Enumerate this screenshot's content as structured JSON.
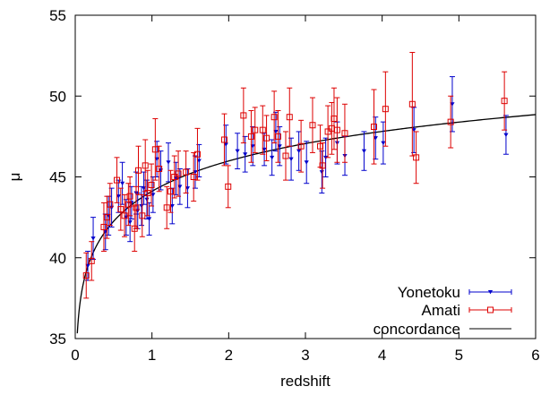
{
  "chart_data": {
    "type": "scatter",
    "xlabel": "redshift",
    "ylabel": "μ",
    "xlim": [
      0,
      6
    ],
    "ylim": [
      35,
      55
    ],
    "x_ticks": [
      0,
      1,
      2,
      3,
      4,
      5,
      6
    ],
    "y_ticks": [
      35,
      40,
      45,
      50,
      55
    ],
    "grid": false,
    "legend": "bottom-right",
    "series": [
      {
        "name": "Yonetoku",
        "marker": "filled-triangle-down",
        "color": "#0000cc",
        "points": [
          {
            "x": 0.15,
            "y": 39.5,
            "err": 0.9
          },
          {
            "x": 0.22,
            "y": 41.2,
            "err": 1.3
          },
          {
            "x": 0.38,
            "y": 41.6,
            "err": 1.1
          },
          {
            "x": 0.42,
            "y": 42.6,
            "err": 1.2
          },
          {
            "x": 0.46,
            "y": 43.1,
            "err": 1.2
          },
          {
            "x": 0.55,
            "y": 43.8,
            "err": 1.0
          },
          {
            "x": 0.6,
            "y": 44.6,
            "err": 1.3
          },
          {
            "x": 0.65,
            "y": 42.5,
            "err": 1.1
          },
          {
            "x": 0.7,
            "y": 42.2,
            "err": 1.2
          },
          {
            "x": 0.72,
            "y": 43.4,
            "err": 1.0
          },
          {
            "x": 0.78,
            "y": 44.0,
            "err": 1.3
          },
          {
            "x": 0.8,
            "y": 42.9,
            "err": 1.1
          },
          {
            "x": 0.85,
            "y": 43.2,
            "err": 1.2
          },
          {
            "x": 0.88,
            "y": 44.3,
            "err": 1.0
          },
          {
            "x": 0.92,
            "y": 43.6,
            "err": 1.2
          },
          {
            "x": 0.95,
            "y": 42.4,
            "err": 1.0
          },
          {
            "x": 1.0,
            "y": 43.9,
            "err": 1.1
          },
          {
            "x": 1.05,
            "y": 46.1,
            "err": 1.1
          },
          {
            "x": 1.1,
            "y": 45.4,
            "err": 1.2
          },
          {
            "x": 1.2,
            "y": 45.9,
            "err": 1.2
          },
          {
            "x": 1.25,
            "y": 43.2,
            "err": 1.1
          },
          {
            "x": 1.3,
            "y": 44.9,
            "err": 1.0
          },
          {
            "x": 1.35,
            "y": 44.4,
            "err": 1.1
          },
          {
            "x": 1.45,
            "y": 44.3,
            "err": 1.2
          },
          {
            "x": 1.55,
            "y": 45.3,
            "err": 1.0
          },
          {
            "x": 1.6,
            "y": 46.0,
            "err": 1.0
          },
          {
            "x": 1.95,
            "y": 47.0,
            "err": 1.2
          },
          {
            "x": 2.1,
            "y": 46.6,
            "err": 1.1
          },
          {
            "x": 2.2,
            "y": 46.4,
            "err": 1.1
          },
          {
            "x": 2.3,
            "y": 46.9,
            "err": 1.2
          },
          {
            "x": 2.45,
            "y": 46.7,
            "err": 1.0
          },
          {
            "x": 2.55,
            "y": 46.2,
            "err": 1.1
          },
          {
            "x": 2.6,
            "y": 47.8,
            "err": 1.2
          },
          {
            "x": 2.65,
            "y": 46.9,
            "err": 1.2
          },
          {
            "x": 2.8,
            "y": 46.1,
            "err": 1.3
          },
          {
            "x": 2.9,
            "y": 46.6,
            "err": 1.2
          },
          {
            "x": 3.0,
            "y": 45.9,
            "err": 1.3
          },
          {
            "x": 3.2,
            "y": 45.3,
            "err": 1.3
          },
          {
            "x": 3.25,
            "y": 46.2,
            "err": 1.2
          },
          {
            "x": 3.4,
            "y": 47.1,
            "err": 1.3
          },
          {
            "x": 3.5,
            "y": 46.3,
            "err": 1.2
          },
          {
            "x": 3.75,
            "y": 46.6,
            "err": 1.2
          },
          {
            "x": 3.9,
            "y": 47.4,
            "err": 1.3
          },
          {
            "x": 4.0,
            "y": 47.1,
            "err": 1.3
          },
          {
            "x": 4.4,
            "y": 47.9,
            "err": 1.4
          },
          {
            "x": 4.9,
            "y": 49.5,
            "err": 1.7
          },
          {
            "x": 5.6,
            "y": 47.6,
            "err": 1.2
          }
        ]
      },
      {
        "name": "Amati",
        "marker": "open-square",
        "color": "#dd0000",
        "points": [
          {
            "x": 0.15,
            "y": 38.9,
            "err": 1.4
          },
          {
            "x": 0.22,
            "y": 39.8,
            "err": 1.2
          },
          {
            "x": 0.38,
            "y": 41.9,
            "err": 1.5
          },
          {
            "x": 0.42,
            "y": 42.5,
            "err": 1.3
          },
          {
            "x": 0.46,
            "y": 43.3,
            "err": 1.3
          },
          {
            "x": 0.55,
            "y": 44.8,
            "err": 1.4
          },
          {
            "x": 0.6,
            "y": 43.0,
            "err": 1.3
          },
          {
            "x": 0.65,
            "y": 42.6,
            "err": 1.3
          },
          {
            "x": 0.7,
            "y": 43.3,
            "err": 1.3
          },
          {
            "x": 0.72,
            "y": 43.8,
            "err": 1.2
          },
          {
            "x": 0.78,
            "y": 41.8,
            "err": 1.4
          },
          {
            "x": 0.8,
            "y": 43.1,
            "err": 1.3
          },
          {
            "x": 0.83,
            "y": 45.4,
            "err": 1.5
          },
          {
            "x": 0.88,
            "y": 42.6,
            "err": 1.3
          },
          {
            "x": 0.92,
            "y": 45.7,
            "err": 1.6
          },
          {
            "x": 0.95,
            "y": 44.0,
            "err": 1.4
          },
          {
            "x": 1.0,
            "y": 44.5,
            "err": 1.3
          },
          {
            "x": 1.05,
            "y": 46.7,
            "err": 1.9
          },
          {
            "x": 1.1,
            "y": 45.5,
            "err": 1.4
          },
          {
            "x": 1.2,
            "y": 43.1,
            "err": 1.3
          },
          {
            "x": 1.25,
            "y": 44.1,
            "err": 1.3
          },
          {
            "x": 1.3,
            "y": 45.0,
            "err": 1.3
          },
          {
            "x": 1.35,
            "y": 45.2,
            "err": 1.4
          },
          {
            "x": 1.45,
            "y": 45.3,
            "err": 1.3
          },
          {
            "x": 1.55,
            "y": 45.0,
            "err": 1.5
          },
          {
            "x": 1.6,
            "y": 46.4,
            "err": 1.6
          },
          {
            "x": 1.95,
            "y": 47.3,
            "err": 1.6
          },
          {
            "x": 2.0,
            "y": 44.4,
            "err": 1.3
          },
          {
            "x": 2.2,
            "y": 48.8,
            "err": 1.7
          },
          {
            "x": 2.3,
            "y": 47.5,
            "err": 1.6
          },
          {
            "x": 2.35,
            "y": 47.9,
            "err": 1.4
          },
          {
            "x": 2.45,
            "y": 47.9,
            "err": 1.5
          },
          {
            "x": 2.5,
            "y": 47.4,
            "err": 1.4
          },
          {
            "x": 2.6,
            "y": 48.7,
            "err": 1.6
          },
          {
            "x": 2.65,
            "y": 47.5,
            "err": 1.6
          },
          {
            "x": 2.75,
            "y": 46.3,
            "err": 1.5
          },
          {
            "x": 2.8,
            "y": 48.7,
            "err": 1.8
          },
          {
            "x": 2.95,
            "y": 46.9,
            "err": 1.6
          },
          {
            "x": 3.1,
            "y": 48.2,
            "err": 1.7
          },
          {
            "x": 3.2,
            "y": 46.9,
            "err": 1.3
          },
          {
            "x": 3.23,
            "y": 45.7,
            "err": 1.4
          },
          {
            "x": 3.3,
            "y": 47.8,
            "err": 1.6
          },
          {
            "x": 3.35,
            "y": 48.0,
            "err": 1.6
          },
          {
            "x": 3.38,
            "y": 48.6,
            "err": 1.9
          },
          {
            "x": 3.42,
            "y": 47.9,
            "err": 2.0
          },
          {
            "x": 3.52,
            "y": 47.7,
            "err": 1.8
          },
          {
            "x": 3.9,
            "y": 48.1,
            "err": 2.3
          },
          {
            "x": 4.05,
            "y": 49.2,
            "err": 2.3
          },
          {
            "x": 4.4,
            "y": 49.5,
            "err": 3.2
          },
          {
            "x": 4.45,
            "y": 46.2,
            "err": 1.6
          },
          {
            "x": 4.9,
            "y": 48.4,
            "err": 1.6
          },
          {
            "x": 5.6,
            "y": 49.7,
            "err": 1.8
          }
        ]
      },
      {
        "name": "concordance",
        "type": "line",
        "color": "#000000",
        "formula": "distance modulus, flat Lambda-CDM"
      }
    ]
  }
}
